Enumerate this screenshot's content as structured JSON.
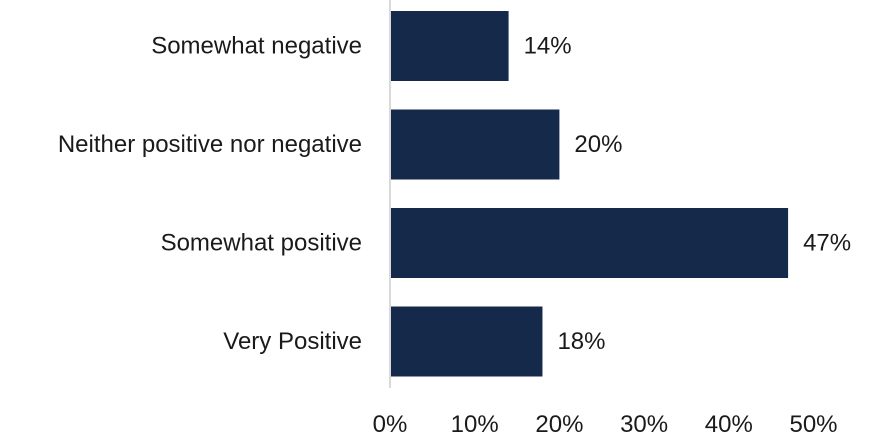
{
  "chart_data": {
    "type": "bar",
    "orientation": "horizontal",
    "categories": [
      "Somewhat negative",
      "Neither positive nor negative",
      "Somewhat positive",
      "Very Positive"
    ],
    "values": [
      14,
      20,
      47,
      18
    ],
    "data_labels": [
      "14%",
      "20%",
      "47%",
      "18%"
    ],
    "xlim": [
      0,
      50
    ],
    "x_ticks": [
      0,
      10,
      20,
      30,
      40,
      50
    ],
    "x_tick_labels": [
      "0%",
      "10%",
      "20%",
      "30%",
      "40%",
      "50%"
    ],
    "title": "",
    "xlabel": "",
    "ylabel": "",
    "grid": false,
    "legend": "none",
    "bar_color": "#15294a",
    "axis_color": "#d9d9d9"
  }
}
